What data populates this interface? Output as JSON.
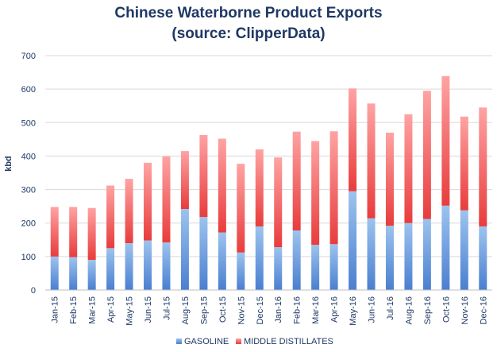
{
  "chart_data": {
    "type": "bar",
    "stacked": true,
    "title": "Chinese Waterborne Product Exports",
    "subtitle": "(source: ClipperData)",
    "xlabel": "",
    "ylabel": "kbd",
    "ylim": [
      0,
      700
    ],
    "yticks": [
      "0",
      "100",
      "200",
      "300",
      "400",
      "500",
      "600",
      "700"
    ],
    "grid": true,
    "legend_position": "bottom",
    "categories": [
      "Jan-15",
      "Feb-15",
      "Mar-15",
      "Apr-15",
      "May-15",
      "Jun-15",
      "Jul-15",
      "Aug-15",
      "Sep-15",
      "Oct-15",
      "Nov-15",
      "Dec-15",
      "Jan-16",
      "Feb-16",
      "Mar-16",
      "Apr-16",
      "May-16",
      "Jun-16",
      "Jul-16",
      "Aug-16",
      "Sep-16",
      "Oct-16",
      "Nov-16",
      "Dec-16"
    ],
    "series": [
      {
        "name": "GASOLINE",
        "color": "#5b9bd5",
        "values": [
          100,
          98,
          90,
          125,
          140,
          148,
          142,
          242,
          218,
          172,
          112,
          190,
          128,
          178,
          135,
          137,
          295,
          214,
          192,
          200,
          212,
          252,
          238,
          190
        ]
      },
      {
        "name": "MIDDLE DISTILLATES",
        "color": "#ff7c80",
        "values": [
          148,
          150,
          155,
          187,
          192,
          232,
          257,
          173,
          245,
          280,
          265,
          230,
          268,
          295,
          310,
          337,
          307,
          343,
          278,
          325,
          383,
          387,
          280,
          355
        ]
      }
    ]
  }
}
